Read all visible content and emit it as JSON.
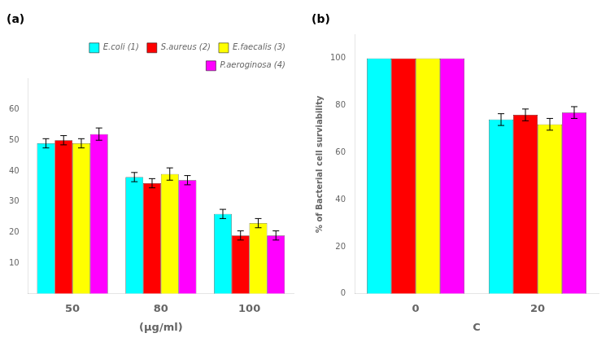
{
  "chart_data": [
    {
      "type": "bar",
      "title": "(a)",
      "xlabel": "(μg/ml)",
      "categories": [
        "50",
        "80",
        "100"
      ],
      "series": [
        {
          "name": "E.coli (1)",
          "color": "cyan",
          "values": [
            49,
            38,
            26
          ],
          "errors": [
            1.5,
            1.5,
            1.5
          ]
        },
        {
          "name": "S.aureus (2)",
          "color": "#FF0000",
          "values": [
            50,
            36,
            19
          ],
          "errors": [
            1.5,
            1.5,
            1.5
          ]
        },
        {
          "name": "E.faecalis (3)",
          "color": "#FFFF00",
          "values": [
            49,
            39,
            23
          ],
          "errors": [
            1.5,
            2.0,
            1.5
          ]
        },
        {
          "name": "P.aeroginosa (4)",
          "color": "#FF00FF",
          "values": [
            52,
            37,
            19
          ],
          "errors": [
            2.0,
            1.5,
            1.5
          ]
        }
      ],
      "ylim": [
        0,
        70
      ],
      "yticks": [
        10,
        20,
        30,
        40,
        50,
        60
      ],
      "grid": false,
      "legend": "upper right"
    },
    {
      "type": "bar",
      "title": "(b)",
      "xlabel": "C",
      "ylabel": "% of Bacterial cell surviability",
      "categories": [
        "0",
        "20"
      ],
      "series": [
        {
          "color": "cyan",
          "values": [
            100,
            74
          ],
          "errors": [
            0,
            2.5
          ]
        },
        {
          "color": "#FF0000",
          "values": [
            100,
            76
          ],
          "errors": [
            0,
            2.5
          ]
        },
        {
          "color": "#FFFF00",
          "values": [
            100,
            72
          ],
          "errors": [
            0,
            2.5
          ]
        },
        {
          "color": "#FF00FF",
          "values": [
            100,
            77
          ],
          "errors": [
            0,
            2.5
          ]
        }
      ],
      "ylim": [
        0,
        110
      ],
      "yticks": [
        0,
        20,
        40,
        60,
        80,
        100
      ],
      "grid": false
    }
  ]
}
